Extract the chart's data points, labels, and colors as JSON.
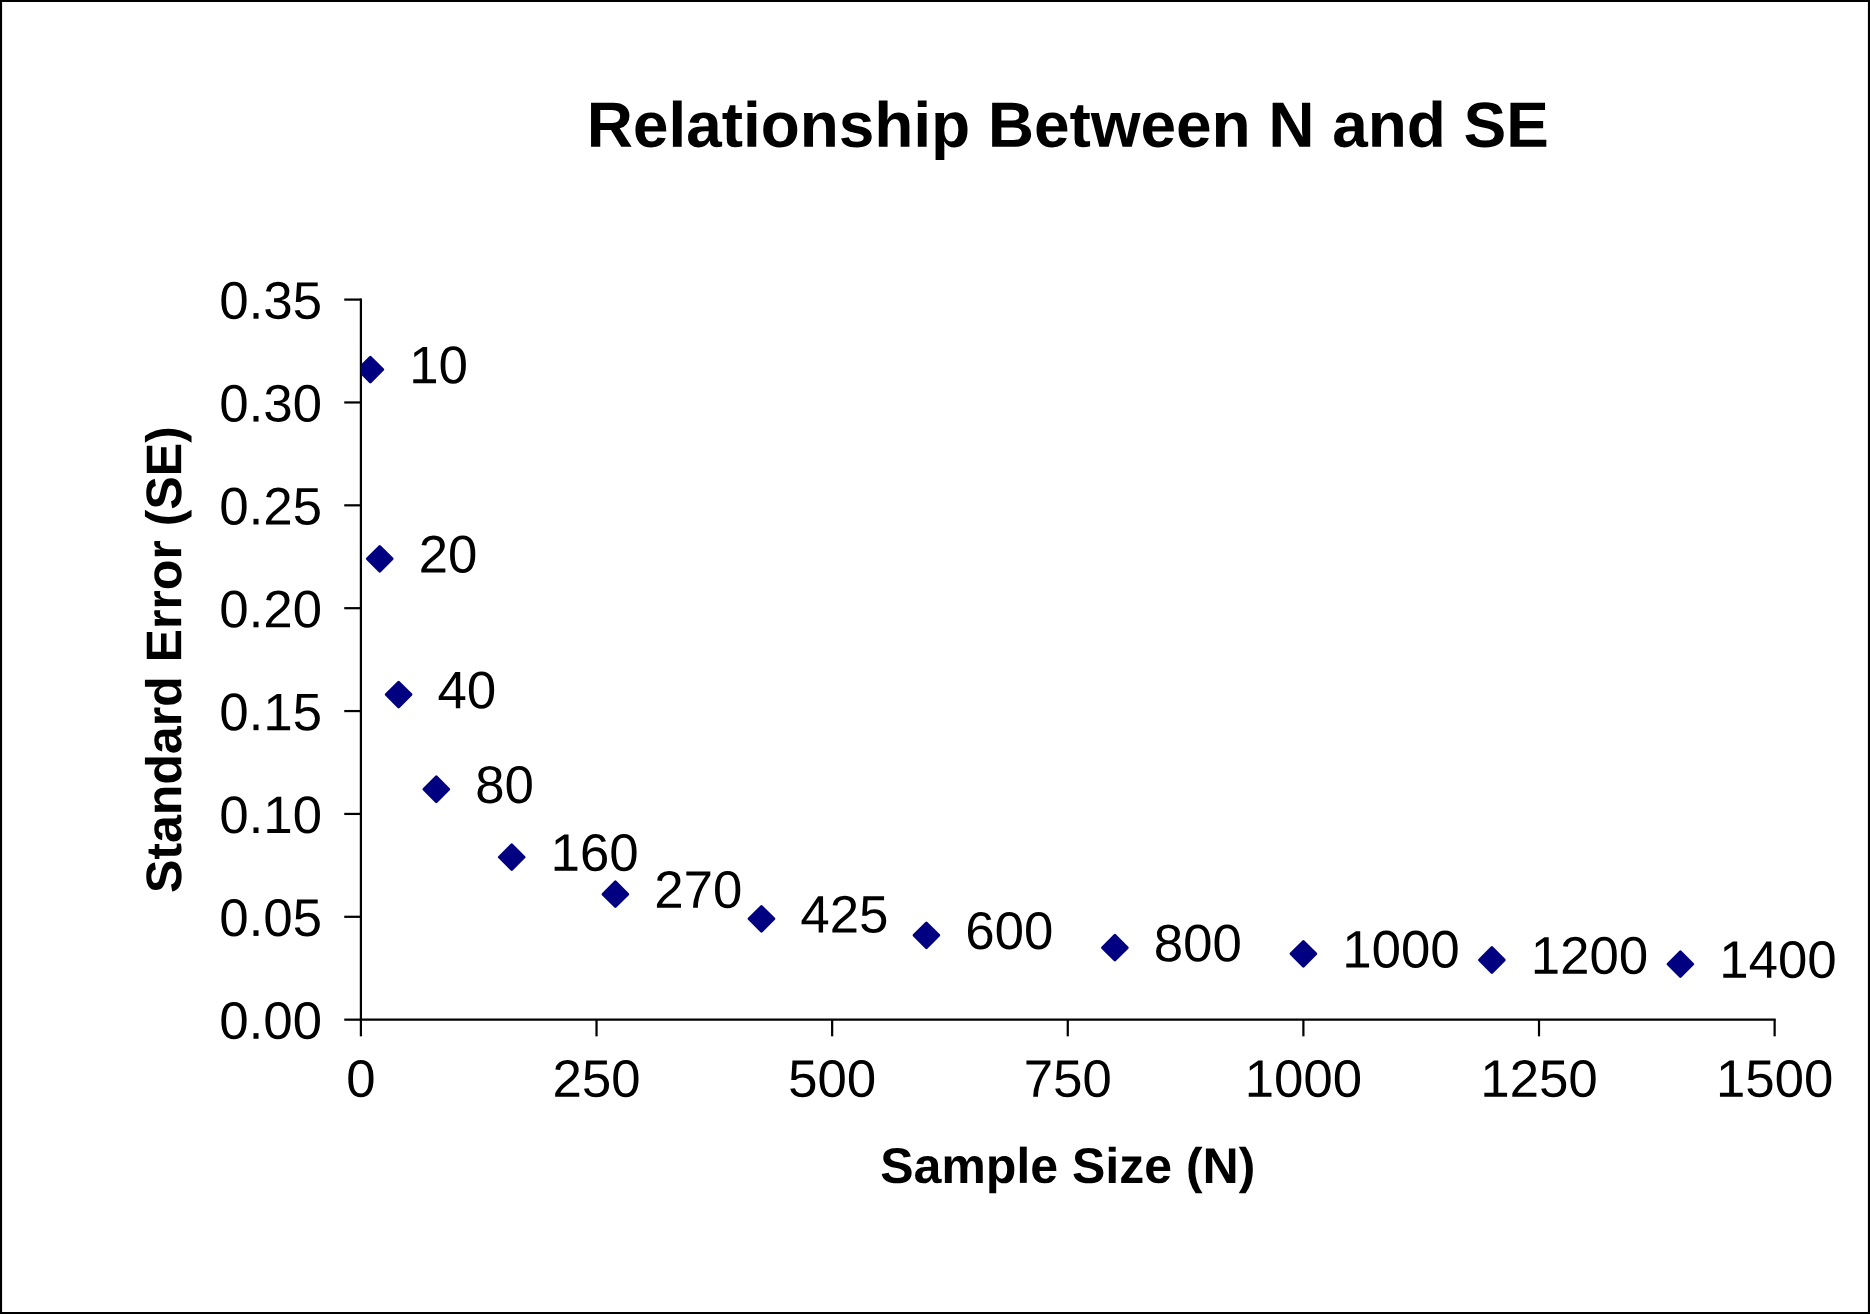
{
  "chart_data": {
    "type": "scatter",
    "title": "Relationship Between N and SE",
    "xlabel": "Sample Size (N)",
    "ylabel": "Standard Error (SE)",
    "xlim": [
      0,
      1500
    ],
    "xticks": [
      0,
      250,
      500,
      750,
      1000,
      1250,
      1500
    ],
    "ylim": [
      0,
      0.35
    ],
    "yticks": [
      {
        "value": 0,
        "label": "0.00"
      },
      {
        "value": 0.05,
        "label": "0.05"
      },
      {
        "value": 0.1,
        "label": "0.10"
      },
      {
        "value": 0.15,
        "label": "0.15"
      },
      {
        "value": 0.2,
        "label": "0.20"
      },
      {
        "value": 0.25,
        "label": "0.25"
      },
      {
        "value": 0.3,
        "label": "0.30"
      },
      {
        "value": 0.35,
        "label": "0.35"
      }
    ],
    "grid": false,
    "legend": false,
    "marker": "diamond",
    "series": [
      {
        "color": "#000080",
        "x": [
          10,
          20,
          40,
          80,
          160,
          270,
          425,
          600,
          800,
          1000,
          1200,
          1400
        ],
        "values": [
          0.316,
          0.224,
          0.158,
          0.112,
          0.079,
          0.061,
          0.049,
          0.041,
          0.035,
          0.032,
          0.029,
          0.027
        ]
      }
    ],
    "annotations": [
      {
        "text": "10",
        "x": 10,
        "y": 0.316
      },
      {
        "text": "20",
        "x": 20,
        "y": 0.224
      },
      {
        "text": "40",
        "x": 40,
        "y": 0.158
      },
      {
        "text": "80",
        "x": 80,
        "y": 0.112
      },
      {
        "text": "160",
        "x": 160,
        "y": 0.079
      },
      {
        "text": "270",
        "x": 270,
        "y": 0.061
      },
      {
        "text": "425",
        "x": 425,
        "y": 0.049
      },
      {
        "text": "600",
        "x": 600,
        "y": 0.041
      },
      {
        "text": "800",
        "x": 800,
        "y": 0.035
      },
      {
        "text": "1000",
        "x": 1000,
        "y": 0.032
      },
      {
        "text": "1200",
        "x": 1200,
        "y": 0.029
      },
      {
        "text": "1400",
        "x": 1400,
        "y": 0.027
      }
    ]
  }
}
